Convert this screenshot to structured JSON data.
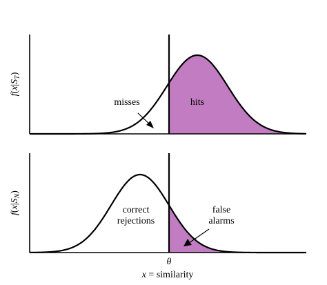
{
  "diagram": {
    "top_panel": {
      "ylabel_f": "f",
      "ylabel_var": "x",
      "ylabel_cond": "S",
      "ylabel_sub": "T",
      "region_labels": {
        "hits": "hits",
        "misses": "misses"
      }
    },
    "bottom_panel": {
      "ylabel_f": "f",
      "ylabel_var": "x",
      "ylabel_cond": "S",
      "ylabel_sub": "N",
      "region_labels": {
        "correct_line1": "correct",
        "correct_line2": "rejections",
        "false_line1": "false",
        "false_line2": "alarms"
      }
    },
    "threshold_label": "θ",
    "xlabel_var": "x",
    "xlabel_eq": "=",
    "xlabel_word": "similarity",
    "colors": {
      "fill": "#c27dc2",
      "curve": "#000000",
      "axis": "#000000"
    }
  }
}
